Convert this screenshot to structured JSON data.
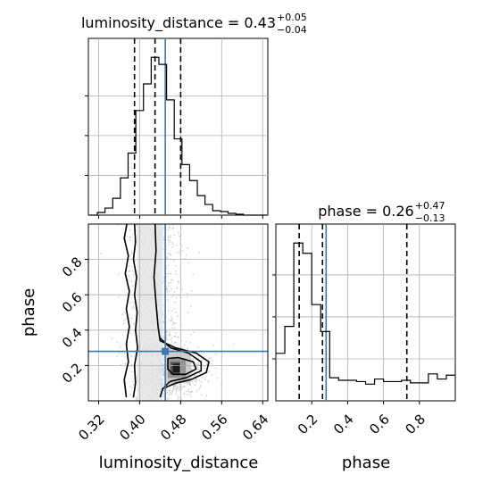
{
  "chart_data": {
    "type": "corner",
    "parameters": [
      "luminosity_distance",
      "phase"
    ],
    "truth": {
      "luminosity_distance": 0.45,
      "phase": 0.28
    },
    "grid": true,
    "colors": {
      "truth": "#3b78b0",
      "hist": "#000000",
      "grid": "#b0b0b0",
      "points": "#888888"
    },
    "panels": {
      "luminosity_distance_hist": {
        "title": {
          "prefix": "luminosity_distance = ",
          "value": "0.43",
          "plus": "+0.05",
          "minus": "−0.04"
        },
        "x_range": [
          0.3,
          0.65
        ],
        "quantiles": [
          0.39,
          0.43,
          0.48
        ],
        "bin_edges": [
          0.3025,
          0.3175,
          0.3325,
          0.3475,
          0.3625,
          0.3775,
          0.3925,
          0.4075,
          0.4225,
          0.4375,
          0.4525,
          0.4675,
          0.4825,
          0.4975,
          0.5125,
          0.5275,
          0.5425,
          0.5575,
          0.5725,
          0.5875,
          0.6025,
          0.6175,
          0.6325,
          0.6475
        ],
        "counts": [
          0,
          3,
          8,
          19,
          42,
          70,
          118,
          148,
          178,
          170,
          130,
          86,
          57,
          39,
          22,
          12,
          5,
          4,
          2,
          1,
          0,
          0,
          0
        ]
      },
      "phase_hist": {
        "title": {
          "prefix": "phase = ",
          "value": "0.26",
          "plus": "+0.47",
          "minus": "−0.13"
        },
        "x_range": [
          0.0,
          1.0
        ],
        "quantiles": [
          0.13,
          0.26,
          0.73
        ],
        "bin_edges": [
          0.0,
          0.05,
          0.1,
          0.15,
          0.2,
          0.25,
          0.3,
          0.35,
          0.4,
          0.45,
          0.5,
          0.55,
          0.6,
          0.65,
          0.7,
          0.75,
          0.8,
          0.85,
          0.9,
          0.95,
          1.0
        ],
        "counts": [
          37,
          58,
          123,
          115,
          75,
          54,
          18,
          16,
          16,
          15,
          13,
          17,
          15,
          15,
          16,
          14,
          14,
          21,
          17,
          20
        ]
      },
      "joint": {
        "x_param": "luminosity_distance",
        "y_param": "phase",
        "x_range": [
          0.3,
          0.65
        ],
        "y_range": [
          0.0,
          1.0
        ]
      }
    },
    "axes": {
      "luminosity_distance": {
        "ticks": [
          0.32,
          0.4,
          0.48,
          0.56,
          0.64
        ],
        "tick_labels": [
          "0.32",
          "0.40",
          "0.48",
          "0.56",
          "0.64"
        ],
        "label": "luminosity_distance"
      },
      "phase": {
        "ticks": [
          0.2,
          0.4,
          0.6,
          0.8
        ],
        "tick_labels": [
          "0.2",
          "0.4",
          "0.6",
          "0.8"
        ],
        "label": "phase"
      }
    }
  }
}
